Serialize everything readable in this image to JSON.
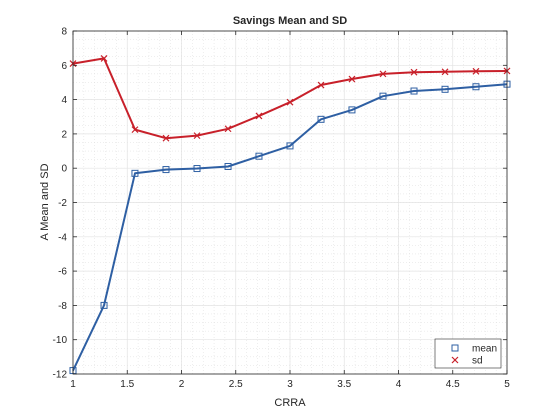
{
  "chart_data": {
    "type": "line",
    "title": "Savings Mean and SD",
    "xlabel": "CRRA",
    "ylabel": "A Mean and SD",
    "xlim": [
      1,
      5
    ],
    "ylim": [
      -12,
      8
    ],
    "xticks": [
      1,
      1.5,
      2,
      2.5,
      3,
      3.5,
      4,
      4.5,
      5
    ],
    "yticks": [
      -12,
      -10,
      -8,
      -6,
      -4,
      -2,
      0,
      2,
      4,
      6,
      8
    ],
    "grid": true,
    "minor_grid": true,
    "legend_position": "bottom-right",
    "series": [
      {
        "name": "mean",
        "color": "#2e5fa3",
        "marker": "square",
        "x": [
          1.0,
          1.286,
          1.571,
          1.857,
          2.143,
          2.429,
          2.714,
          3.0,
          3.286,
          3.571,
          3.857,
          4.143,
          4.429,
          4.714,
          5.0
        ],
        "y": [
          -11.8,
          -8.0,
          -0.3,
          -0.08,
          -0.02,
          0.1,
          0.7,
          1.3,
          2.85,
          3.4,
          4.2,
          4.5,
          4.6,
          4.75,
          4.9
        ]
      },
      {
        "name": "sd",
        "color": "#c8202a",
        "marker": "x",
        "x": [
          1.0,
          1.286,
          1.571,
          1.857,
          2.143,
          2.429,
          2.714,
          3.0,
          3.286,
          3.571,
          3.857,
          4.143,
          4.429,
          4.714,
          5.0
        ],
        "y": [
          6.1,
          6.4,
          2.25,
          1.75,
          1.9,
          2.3,
          3.05,
          3.85,
          4.85,
          5.2,
          5.5,
          5.6,
          5.62,
          5.65,
          5.67
        ]
      }
    ]
  }
}
